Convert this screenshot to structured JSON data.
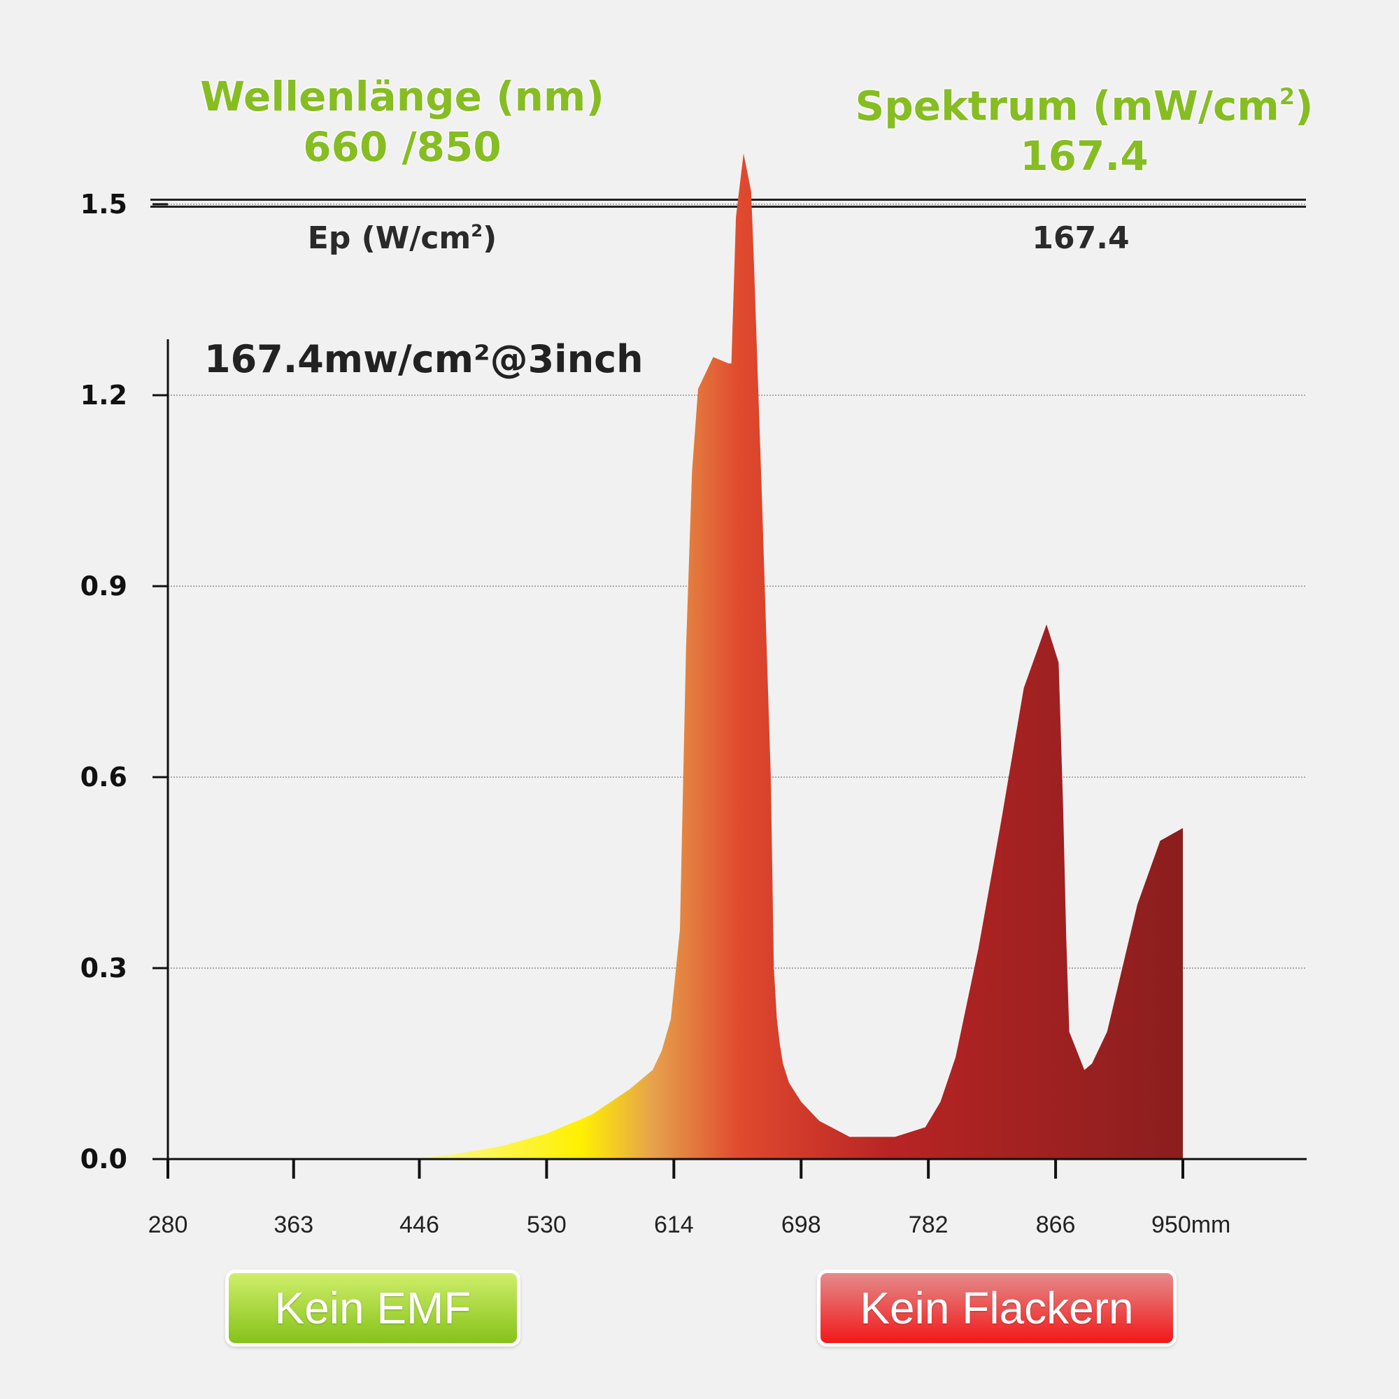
{
  "header": {
    "left_title": "Wellenlänge (nm)",
    "left_value": "660 /850",
    "right_title_prefix": "Spektrum (mW/cm",
    "right_title_sup": "2",
    "right_title_suffix": ")",
    "right_value": "167.4"
  },
  "table": {
    "label_prefix": "Ep (W/cm",
    "label_sup": "2",
    "label_suffix": ")",
    "value": "167.4"
  },
  "badges": {
    "emf": "Kein EMF",
    "flicker": "Kein Flackern"
  },
  "colors": {
    "header_green": "#86bd22",
    "spectrum_yellow": "#ffee00",
    "spectrum_orange": "#e89a4a",
    "spectrum_red": "#e0402a",
    "spectrum_darkred": "#8b1e1e"
  },
  "chart_data": {
    "type": "area",
    "title": "167.4mw/cm²@3inch",
    "xlabel": "",
    "ylabel": "",
    "x_ticks": [
      "280",
      "363",
      "446",
      "530",
      "614",
      "698",
      "782",
      "866",
      "950mm"
    ],
    "x_tick_values": [
      280,
      363,
      446,
      530,
      614,
      698,
      782,
      866,
      950
    ],
    "y_ticks": [
      "0.0",
      "0.3",
      "0.6",
      "0.9",
      "1.2",
      "1.5"
    ],
    "y_tick_values": [
      0,
      0.3,
      0.6,
      0.9,
      1.2,
      1.5
    ],
    "xlim": [
      280,
      1030
    ],
    "ylim": [
      0,
      1.6
    ],
    "grid": true,
    "x": [
      440,
      470,
      500,
      530,
      560,
      585,
      600,
      606,
      612,
      618,
      622,
      626,
      630,
      640,
      650,
      652,
      655,
      660,
      665,
      667,
      672,
      678,
      680,
      682,
      684,
      686,
      690,
      698,
      710,
      730,
      760,
      780,
      790,
      800,
      815,
      830,
      845,
      860,
      864,
      868,
      871,
      873,
      875,
      880,
      885,
      890,
      900,
      910,
      920,
      935,
      950,
      950
    ],
    "y": [
      0.0,
      0.008,
      0.02,
      0.04,
      0.07,
      0.11,
      0.14,
      0.17,
      0.22,
      0.36,
      0.8,
      1.08,
      1.21,
      1.26,
      1.25,
      1.25,
      1.48,
      1.58,
      1.52,
      1.4,
      1.05,
      0.6,
      0.3,
      0.22,
      0.18,
      0.15,
      0.12,
      0.09,
      0.06,
      0.035,
      0.035,
      0.05,
      0.09,
      0.16,
      0.33,
      0.53,
      0.74,
      0.84,
      0.81,
      0.78,
      0.55,
      0.35,
      0.2,
      0.17,
      0.14,
      0.15,
      0.2,
      0.3,
      0.4,
      0.5,
      0.52,
      0.0
    ]
  }
}
